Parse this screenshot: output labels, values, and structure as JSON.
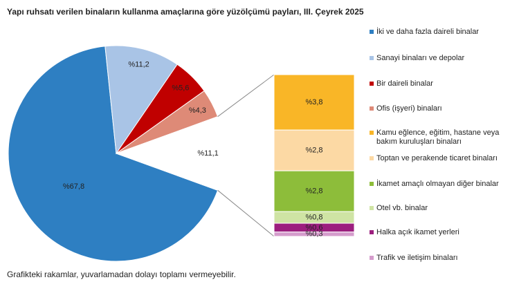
{
  "chart_data": {
    "type": "bar-of-pie",
    "title": "Yapı ruhsatı verilen binaların kullanma amaçlarına göre yüzölçümü payları, III. Çeyrek 2025",
    "pie": {
      "categories": [
        "İki ve daha fazla daireli binalar",
        "Sanayi binaları ve depolar",
        "Bir daireli binalar",
        "Ofis (işyeri) binaları",
        null
      ],
      "values": [
        67.8,
        11.2,
        5.6,
        4.3,
        11.1
      ],
      "value_labels": [
        "%67,8",
        "%11,2",
        "%5,6",
        "%4,3",
        "%11,1"
      ],
      "colors": [
        "#2e7fc2",
        "#a9c4e6",
        "#c00000",
        "#de8a77",
        "#ffffff"
      ]
    },
    "bar": {
      "categories": [
        "Kamu eğlence, eğitim, hastane veya bakım kuruluşları binaları",
        "Toptan ve perakende ticaret binaları",
        "İkamet amaçlı olmayan diğer binalar",
        "Otel vb. binalar",
        "Halka açık ikamet yerleri",
        "Trafik ve iletişim binaları"
      ],
      "values": [
        3.8,
        2.8,
        2.8,
        0.8,
        0.6,
        0.3
      ],
      "value_labels": [
        "%3,8",
        "%2,8",
        "%2,8",
        "%0,8",
        "%0,6",
        "%0,3"
      ],
      "colors": [
        "#f9b627",
        "#fcd9a4",
        "#8dbd3a",
        "#cfe4a4",
        "#9c1f7e",
        "#d59ccc"
      ]
    },
    "note": "Grafikteki rakamlar, yuvarlamadan dolayı toplamı vermeyebilir."
  }
}
